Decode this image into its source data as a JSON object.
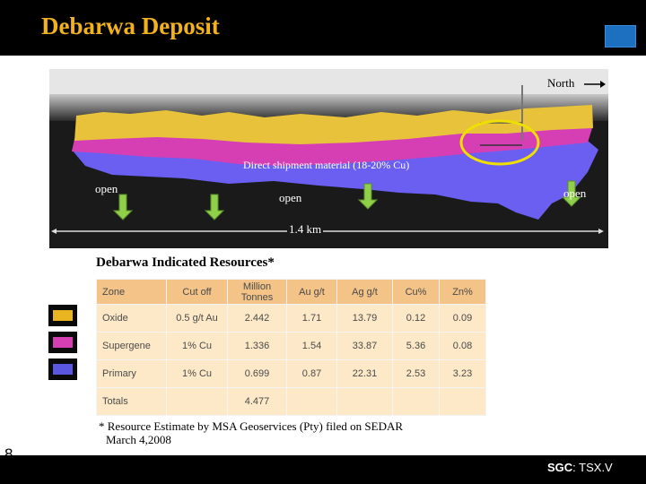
{
  "header": {
    "title": "Debarwa Deposit"
  },
  "section_view": {
    "north_label": "North",
    "direct_shipment_label": "Direct shipment material (18-20% Cu)",
    "open_left": "open",
    "open_center": "open",
    "open_right": "open",
    "scale_label": "1.4 km",
    "colors": {
      "oxide": "#e8c23a",
      "supergene": "#d63fb4",
      "primary": "#6a5ff0",
      "arrow": "#8fcf4a",
      "highlight": "#f0e000"
    }
  },
  "resources": {
    "title": "Debarwa Indicated Resources*",
    "headers": [
      "Zone",
      "Cut off",
      "Million Tonnes",
      "Au g/t",
      "Ag g/t",
      "Cu%",
      "Zn%"
    ],
    "rows": [
      [
        "Oxide",
        "0.5 g/t Au",
        "2.442",
        "1.71",
        "13.79",
        "0.12",
        "0.09"
      ],
      [
        "Supergene",
        "1% Cu",
        "1.336",
        "1.54",
        "33.87",
        "5.36",
        "0.08"
      ],
      [
        "Primary",
        "1% Cu",
        "0.699",
        "0.87",
        "22.31",
        "2.53",
        "3.23"
      ],
      [
        "Totals",
        "",
        "4.477",
        "",
        "",
        "",
        ""
      ]
    ],
    "legend_colors": [
      "#e8b520",
      "#d63fb4",
      "#5b57e0"
    ]
  },
  "footnote": {
    "line1": "* Resource Estimate by MSA Geoservices (Pty) filed on SEDAR",
    "line2": "March 4,2008"
  },
  "footer": {
    "page_number": "8",
    "ticker_bold": "SGC",
    "ticker_rest": ": TSX.V"
  }
}
